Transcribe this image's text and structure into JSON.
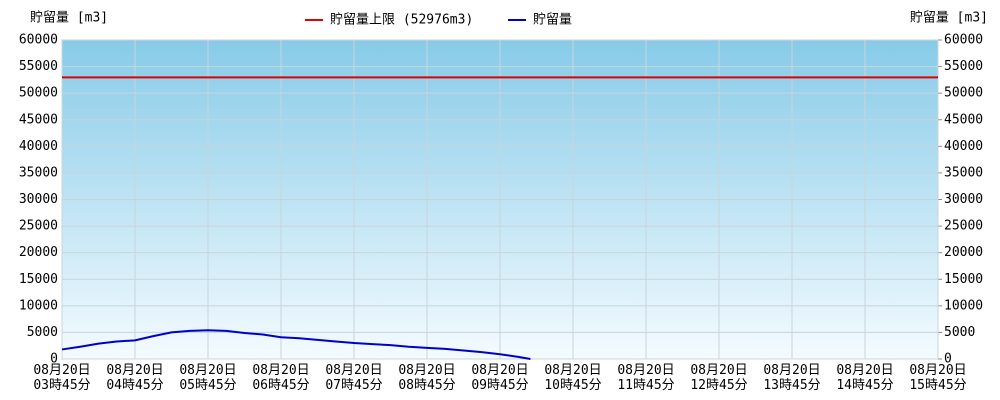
{
  "chart_data": {
    "type": "line",
    "y_label": "貯留量 [m3]",
    "y2_label": "貯留量 [m3]",
    "limit": {
      "name": "貯留量上限 (52976m3)",
      "value": 52976,
      "color": "#e00000"
    },
    "x": [
      "08月20日\n03時45分",
      "08月20日\n04時00分",
      "08月20日\n04時15分",
      "08月20日\n04時30分",
      "08月20日\n04時45分",
      "08月20日\n05時00分",
      "08月20日\n05時15分",
      "08月20日\n05時30分",
      "08月20日\n05時45分",
      "08月20日\n06時00分",
      "08月20日\n06時15分",
      "08月20日\n06時30分",
      "08月20日\n06時45分",
      "08月20日\n07時00分",
      "08月20日\n07時15分",
      "08月20日\n07時30分",
      "08月20日\n07時45分",
      "08月20日\n08時00分",
      "08月20日\n08時15分",
      "08月20日\n08時30分",
      "08月20日\n08時45分",
      "08月20日\n09時00分",
      "08月20日\n09時15分",
      "08月20日\n09時30分",
      "08月20日\n09時45分",
      "08月20日\n10時00分",
      "08月20日\n10時10分"
    ],
    "series": [
      {
        "name": "貯留量",
        "color": "#0000cc",
        "values": [
          1800,
          2300,
          2900,
          3300,
          3500,
          4300,
          5000,
          5300,
          5400,
          5300,
          4900,
          4600,
          4100,
          3900,
          3600,
          3300,
          3000,
          2800,
          2600,
          2300,
          2100,
          1900,
          1600,
          1300,
          900,
          400,
          0
        ]
      }
    ],
    "xticks": [
      "08月20日\n03時45分",
      "08月20日\n04時45分",
      "08月20日\n05時45分",
      "08月20日\n06時45分",
      "08月20日\n07時45分",
      "08月20日\n08時45分",
      "08月20日\n09時45分",
      "08月20日\n10時45分",
      "08月20日\n11時45分",
      "08月20日\n12時45分",
      "08月20日\n13時45分",
      "08月20日\n14時45分",
      "08月20日\n15時45分"
    ],
    "ylim": [
      0,
      60000
    ],
    "yticks": [
      0,
      5000,
      10000,
      15000,
      20000,
      25000,
      30000,
      35000,
      40000,
      45000,
      50000,
      55000,
      60000
    ],
    "y2lim": [
      0,
      60000
    ],
    "y2ticks": [
      0,
      5000,
      10000,
      15000,
      20000,
      25000,
      30000,
      35000,
      40000,
      45000,
      50000,
      55000,
      60000
    ],
    "grid": true
  }
}
